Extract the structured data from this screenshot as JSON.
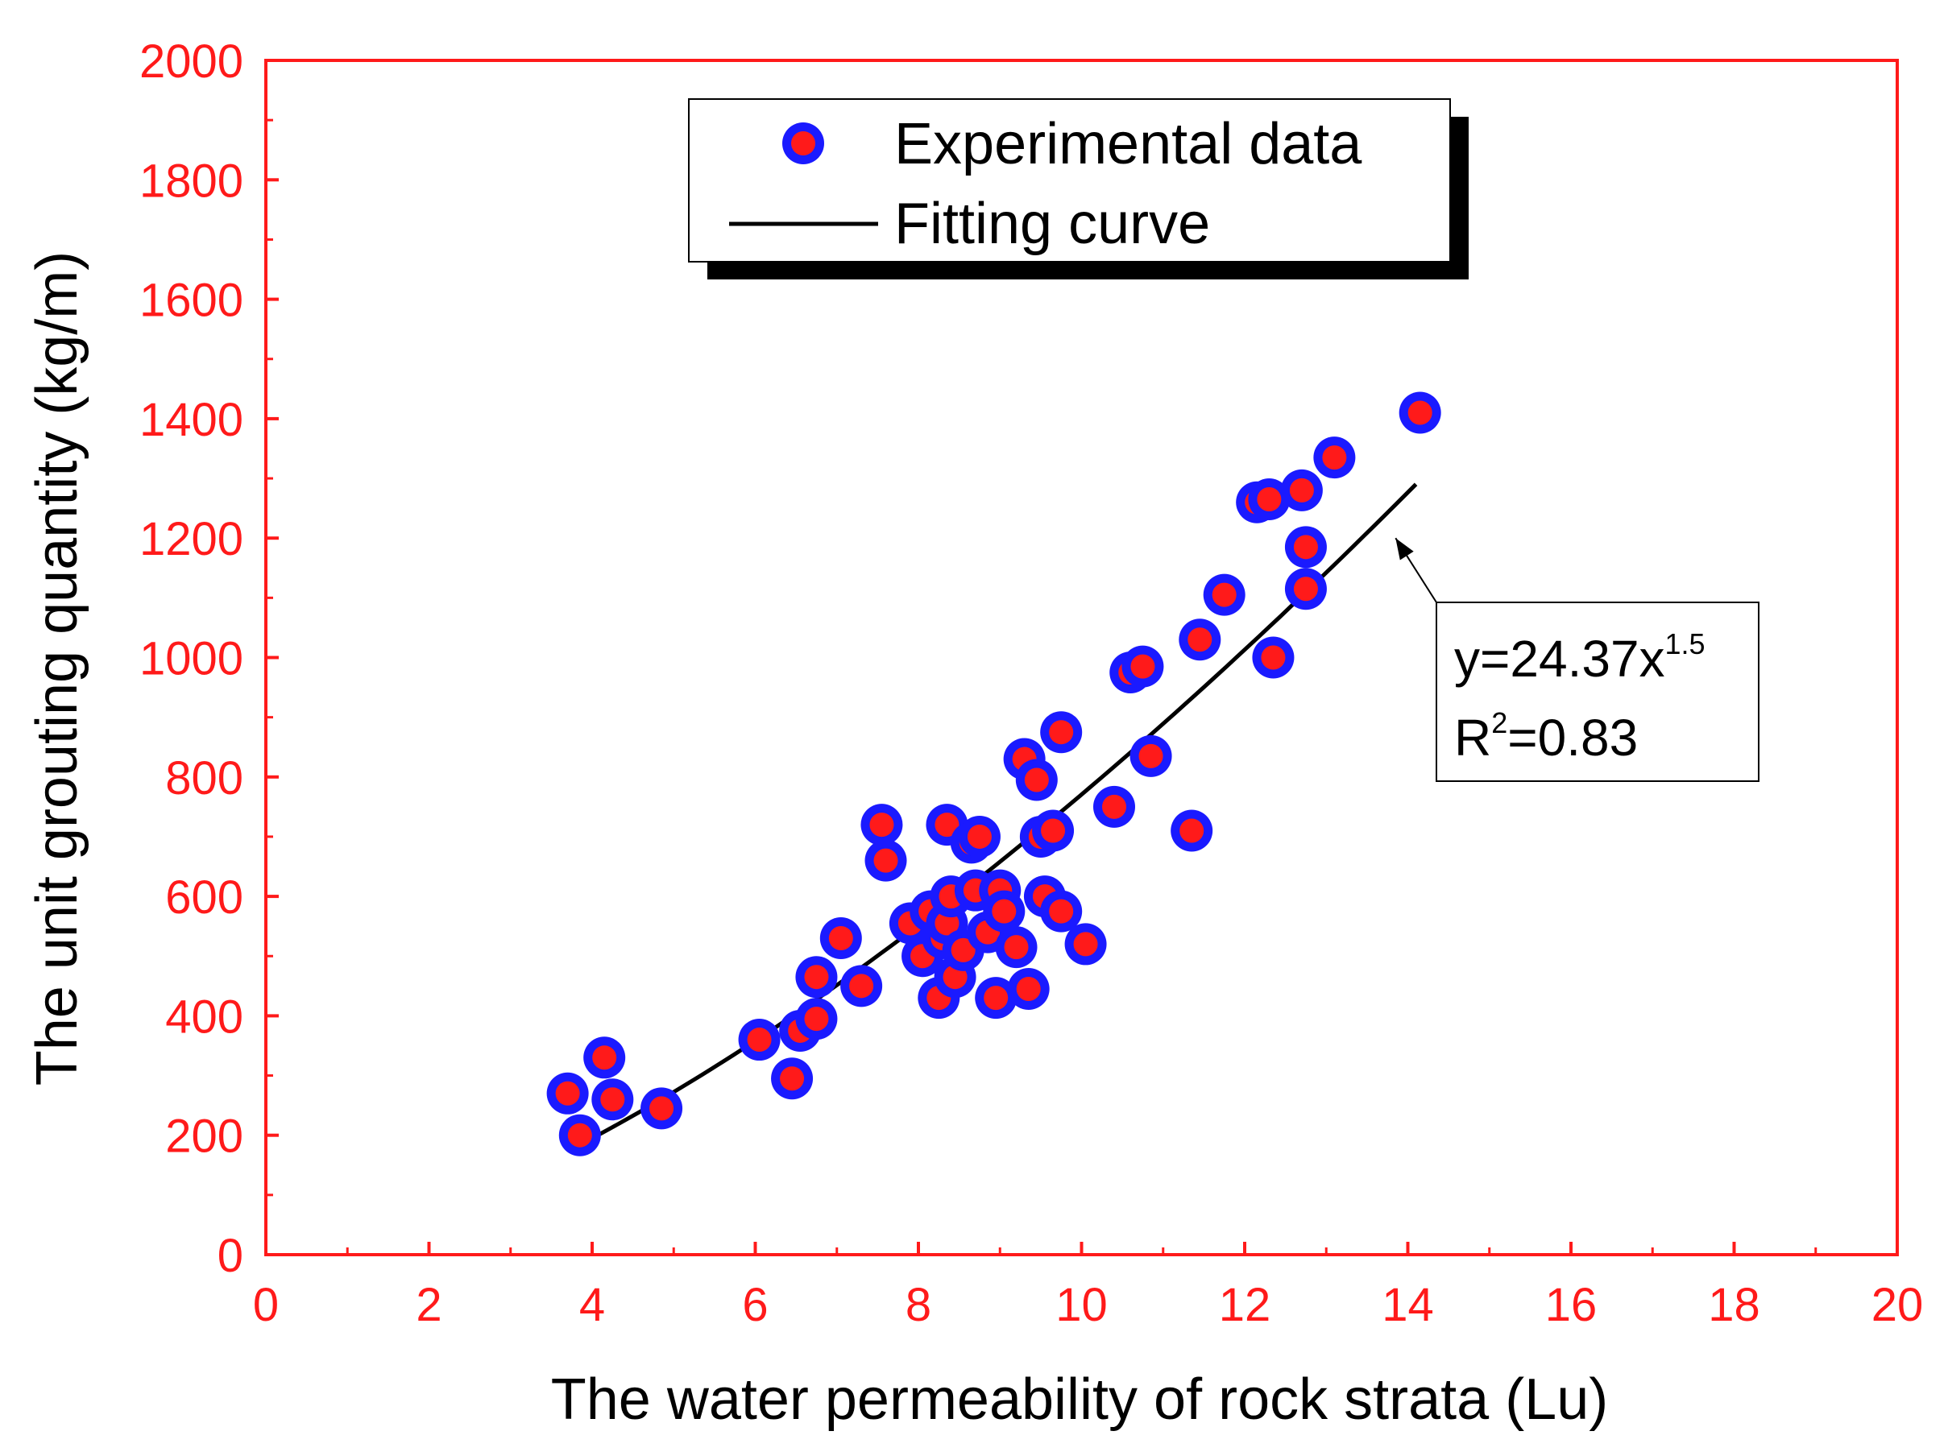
{
  "chart_data": {
    "type": "scatter",
    "title": "",
    "xlabel": "The water permeability of rock strata (Lu)",
    "ylabel": "The unit grouting quantity (kg/m)",
    "xlim": [
      0,
      20
    ],
    "ylim": [
      0,
      2000
    ],
    "x_ticks": [
      "0",
      "2",
      "4",
      "6",
      "8",
      "10",
      "12",
      "14",
      "16",
      "18",
      "20"
    ],
    "y_ticks": [
      "0",
      "200",
      "400",
      "600",
      "800",
      "1000",
      "1200",
      "1400",
      "1600",
      "1800",
      "2000"
    ],
    "grid": false,
    "legend_position": "top-center",
    "legend": {
      "scatter_label": "Experimental data",
      "line_label": "Fitting curve"
    },
    "annotation": {
      "equation_prefix": "y=24.37x",
      "equation_exponent": "1.5",
      "r2_prefix": "R",
      "r2_superscript": "2",
      "r2_value": "=0.83",
      "arrow_target": [
        13.85,
        1200
      ]
    },
    "fit": {
      "name": "Fitting curve",
      "coefficient": 24.37,
      "exponent": 1.5,
      "x_range": [
        3.8,
        14.1
      ]
    },
    "series": [
      {
        "name": "Experimental data",
        "marker_outer_color": "#1a1aff",
        "marker_inner_color": "#ff1a1a",
        "points": [
          [
            3.7,
            270
          ],
          [
            3.85,
            200
          ],
          [
            4.15,
            330
          ],
          [
            4.25,
            260
          ],
          [
            4.85,
            245
          ],
          [
            6.05,
            360
          ],
          [
            6.45,
            295
          ],
          [
            6.55,
            375
          ],
          [
            6.75,
            395
          ],
          [
            6.75,
            465
          ],
          [
            7.05,
            530
          ],
          [
            7.3,
            450
          ],
          [
            7.55,
            720
          ],
          [
            7.6,
            660
          ],
          [
            7.9,
            555
          ],
          [
            8.05,
            500
          ],
          [
            8.15,
            575
          ],
          [
            8.25,
            430
          ],
          [
            8.3,
            530
          ],
          [
            8.35,
            555
          ],
          [
            8.35,
            720
          ],
          [
            8.4,
            600
          ],
          [
            8.45,
            465
          ],
          [
            8.55,
            510
          ],
          [
            8.65,
            690
          ],
          [
            8.7,
            610
          ],
          [
            8.75,
            700
          ],
          [
            8.85,
            540
          ],
          [
            8.95,
            430
          ],
          [
            9.0,
            610
          ],
          [
            9.05,
            575
          ],
          [
            9.2,
            515
          ],
          [
            9.3,
            830
          ],
          [
            9.35,
            445
          ],
          [
            9.45,
            795
          ],
          [
            9.5,
            700
          ],
          [
            9.55,
            600
          ],
          [
            9.65,
            710
          ],
          [
            9.75,
            575
          ],
          [
            9.75,
            875
          ],
          [
            10.05,
            520
          ],
          [
            10.4,
            750
          ],
          [
            10.6,
            975
          ],
          [
            10.75,
            985
          ],
          [
            10.85,
            835
          ],
          [
            11.35,
            710
          ],
          [
            11.45,
            1030
          ],
          [
            11.75,
            1105
          ],
          [
            12.15,
            1260
          ],
          [
            12.3,
            1265
          ],
          [
            12.35,
            1000
          ],
          [
            12.7,
            1280
          ],
          [
            12.75,
            1185
          ],
          [
            12.75,
            1115
          ],
          [
            13.1,
            1335
          ],
          [
            14.15,
            1410
          ]
        ]
      }
    ]
  },
  "colors": {
    "axis": "#ff1a1a",
    "axis_text": "#ff1a1a",
    "label_text": "#000000",
    "fit_line": "#000000",
    "marker_outer": "#1a1aff",
    "marker_inner": "#ff1a1a"
  }
}
